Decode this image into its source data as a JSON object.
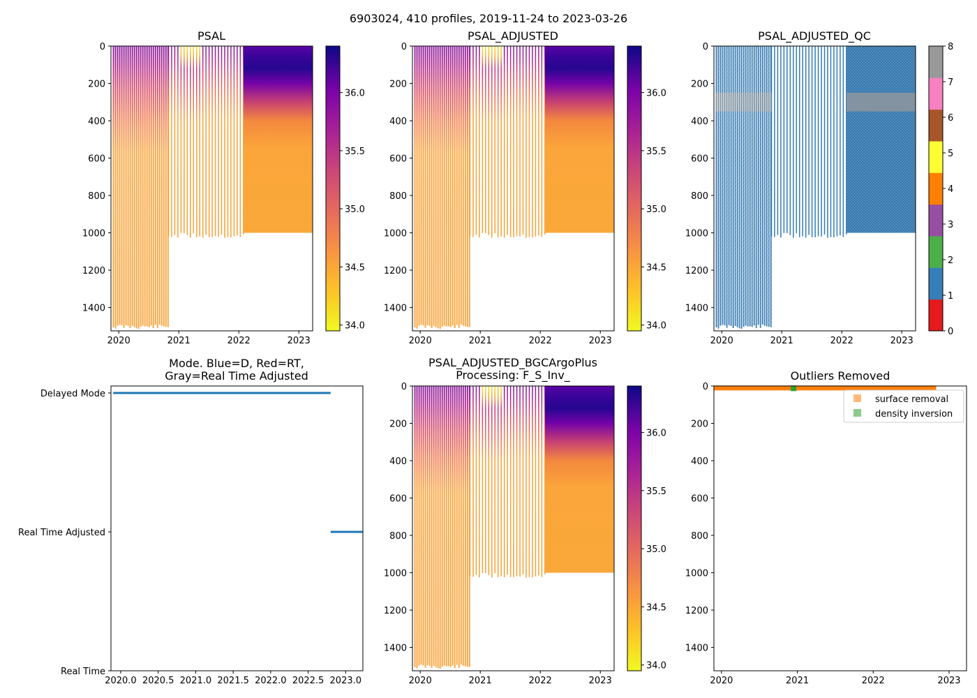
{
  "figure": {
    "suptitle": "6903024, 410 profiles, 2019-11-24 to 2023-03-26"
  },
  "colors": {
    "qc": [
      "#e41a1c",
      "#377eb8",
      "#4daf4a",
      "#984ea3",
      "#ff7f00",
      "#ffff33",
      "#a65628",
      "#f781bf",
      "#999999"
    ],
    "mode_line": "#1f77b4",
    "surface_removal": "#ff7f0e",
    "density_inversion": "#2ca02c"
  },
  "chart_data": [
    {
      "id": "psal",
      "type": "heatmap",
      "title": "PSAL",
      "xlim": [
        2019.87,
        2023.23
      ],
      "ylim": [
        1525,
        0
      ],
      "xticks": [
        "2020",
        "2021",
        "2022",
        "2023"
      ],
      "yticks": [
        "0",
        "200",
        "400",
        "600",
        "800",
        "1000",
        "1200",
        "1400"
      ],
      "colorbar": {
        "range": [
          33.95,
          36.4
        ],
        "ticks": [
          "34.0",
          "34.5",
          "35.0",
          "35.5",
          "36.0"
        ],
        "cmap": "plasma_r"
      },
      "profile_groups": [
        {
          "from": 2019.9,
          "to": 2020.82,
          "max_depth": 1500
        },
        {
          "from": 2020.82,
          "to": 2022.08,
          "max_depth": 1010
        },
        {
          "from": 2022.08,
          "to": 2023.23,
          "max_depth": 1000
        }
      ]
    },
    {
      "id": "psal_adjusted",
      "type": "heatmap",
      "title": "PSAL_ADJUSTED",
      "xlim": [
        2019.87,
        2023.23
      ],
      "ylim": [
        1525,
        0
      ],
      "xticks": [
        "2020",
        "2021",
        "2022",
        "2023"
      ],
      "yticks": [
        "0",
        "200",
        "400",
        "600",
        "800",
        "1000",
        "1200",
        "1400"
      ],
      "colorbar": {
        "range": [
          33.95,
          36.4
        ],
        "ticks": [
          "34.0",
          "34.5",
          "35.0",
          "35.5",
          "36.0"
        ],
        "cmap": "plasma_r"
      }
    },
    {
      "id": "psal_adjusted_qc",
      "type": "heatmap",
      "title": "PSAL_ADJUSTED_QC",
      "xlim": [
        2019.87,
        2023.23
      ],
      "ylim": [
        1525,
        0
      ],
      "xticks": [
        "2020",
        "2021",
        "2022",
        "2023"
      ],
      "yticks": [
        "0",
        "200",
        "400",
        "600",
        "800",
        "1000",
        "1200",
        "1400"
      ],
      "colorbar": {
        "range": [
          0,
          8
        ],
        "ticks": [
          "0",
          "1",
          "2",
          "3",
          "4",
          "5",
          "6",
          "7",
          "8"
        ],
        "cmap": "qc_discrete"
      },
      "dominant_flag": 1,
      "band_flag_8_depth": [
        250,
        350
      ]
    },
    {
      "id": "mode",
      "type": "line",
      "title_line1": "Mode. Blue=D, Red=RT,",
      "title_line2": "Gray=Real Time Adjusted",
      "xlim": [
        2019.87,
        2023.23
      ],
      "xticks": [
        "2020.0",
        "2020.5",
        "2021.0",
        "2021.5",
        "2022.0",
        "2022.5",
        "2023.0"
      ],
      "ycategories": [
        "Delayed Mode",
        "Real Time Adjusted",
        "Real Time"
      ],
      "series": [
        {
          "name": "Delayed Mode",
          "x": [
            2019.9,
            2022.8
          ],
          "level": 0
        },
        {
          "name": "Real Time Adjusted",
          "x": [
            2022.8,
            2023.23
          ],
          "level": 1
        }
      ]
    },
    {
      "id": "psal_bgc",
      "type": "heatmap",
      "title_line1": "PSAL_ADJUSTED_BGCArgoPlus",
      "title_line2": "Processing: F_S_Inv_",
      "xlim": [
        2019.87,
        2023.23
      ],
      "ylim": [
        1525,
        0
      ],
      "xticks": [
        "2020",
        "2021",
        "2022",
        "2023"
      ],
      "yticks": [
        "0",
        "200",
        "400",
        "600",
        "800",
        "1000",
        "1200",
        "1400"
      ],
      "colorbar": {
        "range": [
          33.95,
          36.4
        ],
        "ticks": [
          "34.0",
          "34.5",
          "35.0",
          "35.5",
          "36.0"
        ],
        "cmap": "plasma_r"
      }
    },
    {
      "id": "outliers",
      "type": "scatter",
      "title": "Outliers Removed",
      "xlim": [
        2019.9,
        2023.23
      ],
      "ylim": [
        1525,
        0
      ],
      "xticks": [
        "2020",
        "2021",
        "2022",
        "2023"
      ],
      "yticks": [
        "0",
        "200",
        "400",
        "600",
        "800",
        "1000",
        "1200",
        "1400"
      ],
      "legend": [
        "surface removal",
        "density inversion"
      ],
      "legend_position": "top-right",
      "series": [
        {
          "name": "surface removal",
          "x_range": [
            2019.9,
            2022.83
          ],
          "depth": 5
        },
        {
          "name": "density inversion",
          "x": [
            2020.95
          ],
          "depth": 5
        }
      ]
    }
  ]
}
